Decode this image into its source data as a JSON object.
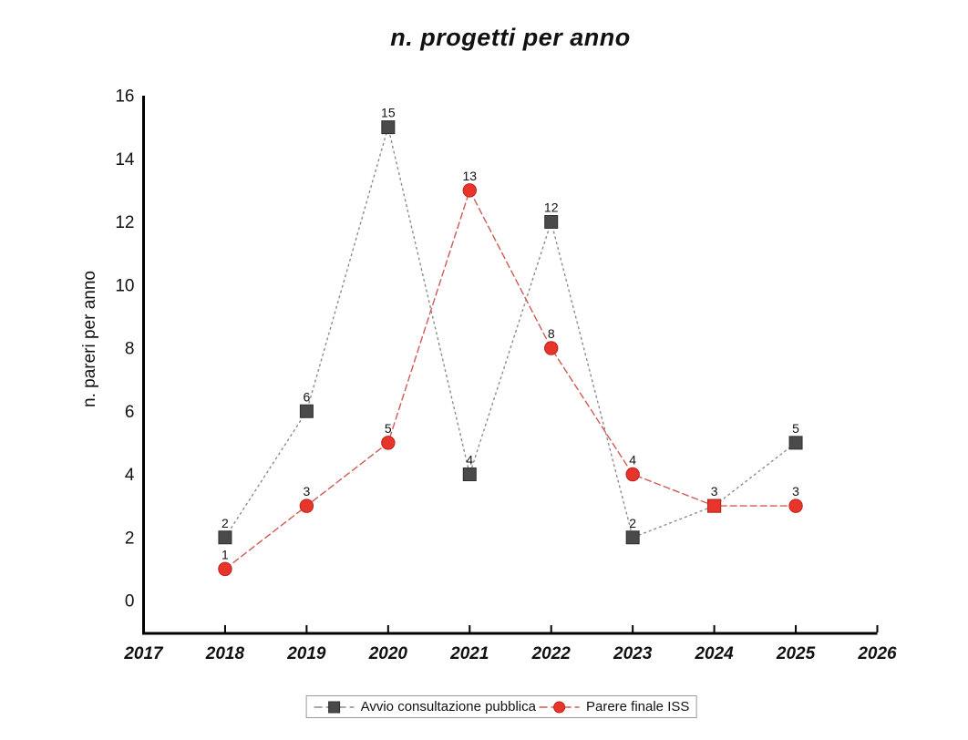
{
  "chart_data": {
    "type": "line",
    "title": "n. progetti per anno",
    "xlabel": "",
    "ylabel": "n. pareri per anno",
    "x": [
      2018,
      2019,
      2020,
      2021,
      2022,
      2023,
      2024,
      2025
    ],
    "x_ticks": [
      2017,
      2018,
      2019,
      2020,
      2021,
      2022,
      2023,
      2024,
      2025,
      2026
    ],
    "y_ticks": [
      0,
      2,
      4,
      6,
      8,
      10,
      12,
      14,
      16
    ],
    "xlim": [
      2017,
      2026
    ],
    "ylim": [
      0,
      16
    ],
    "grid": false,
    "data_labels": true,
    "legend_position": "bottom-center",
    "axis_color": "#000000",
    "text_color": "#111111",
    "series": [
      {
        "name": "Avvio consultazione pubblica",
        "marker": "square",
        "marker_color": "#4a4a4a",
        "marker_edge": "#2f2f2f",
        "line_color": "#8c8c8c",
        "line_dash": "3 3",
        "values": [
          2,
          6,
          15,
          4,
          12,
          2,
          3,
          5
        ]
      },
      {
        "name": "Parere finale ISS",
        "marker": "circle",
        "marker_color": "#e8352b",
        "marker_edge": "#c0231b",
        "line_color": "#d05a53",
        "line_dash": "8 3",
        "values": [
          1,
          3,
          5,
          13,
          8,
          4,
          3,
          3
        ],
        "marker_overrides": {
          "6": "square"
        }
      }
    ]
  }
}
